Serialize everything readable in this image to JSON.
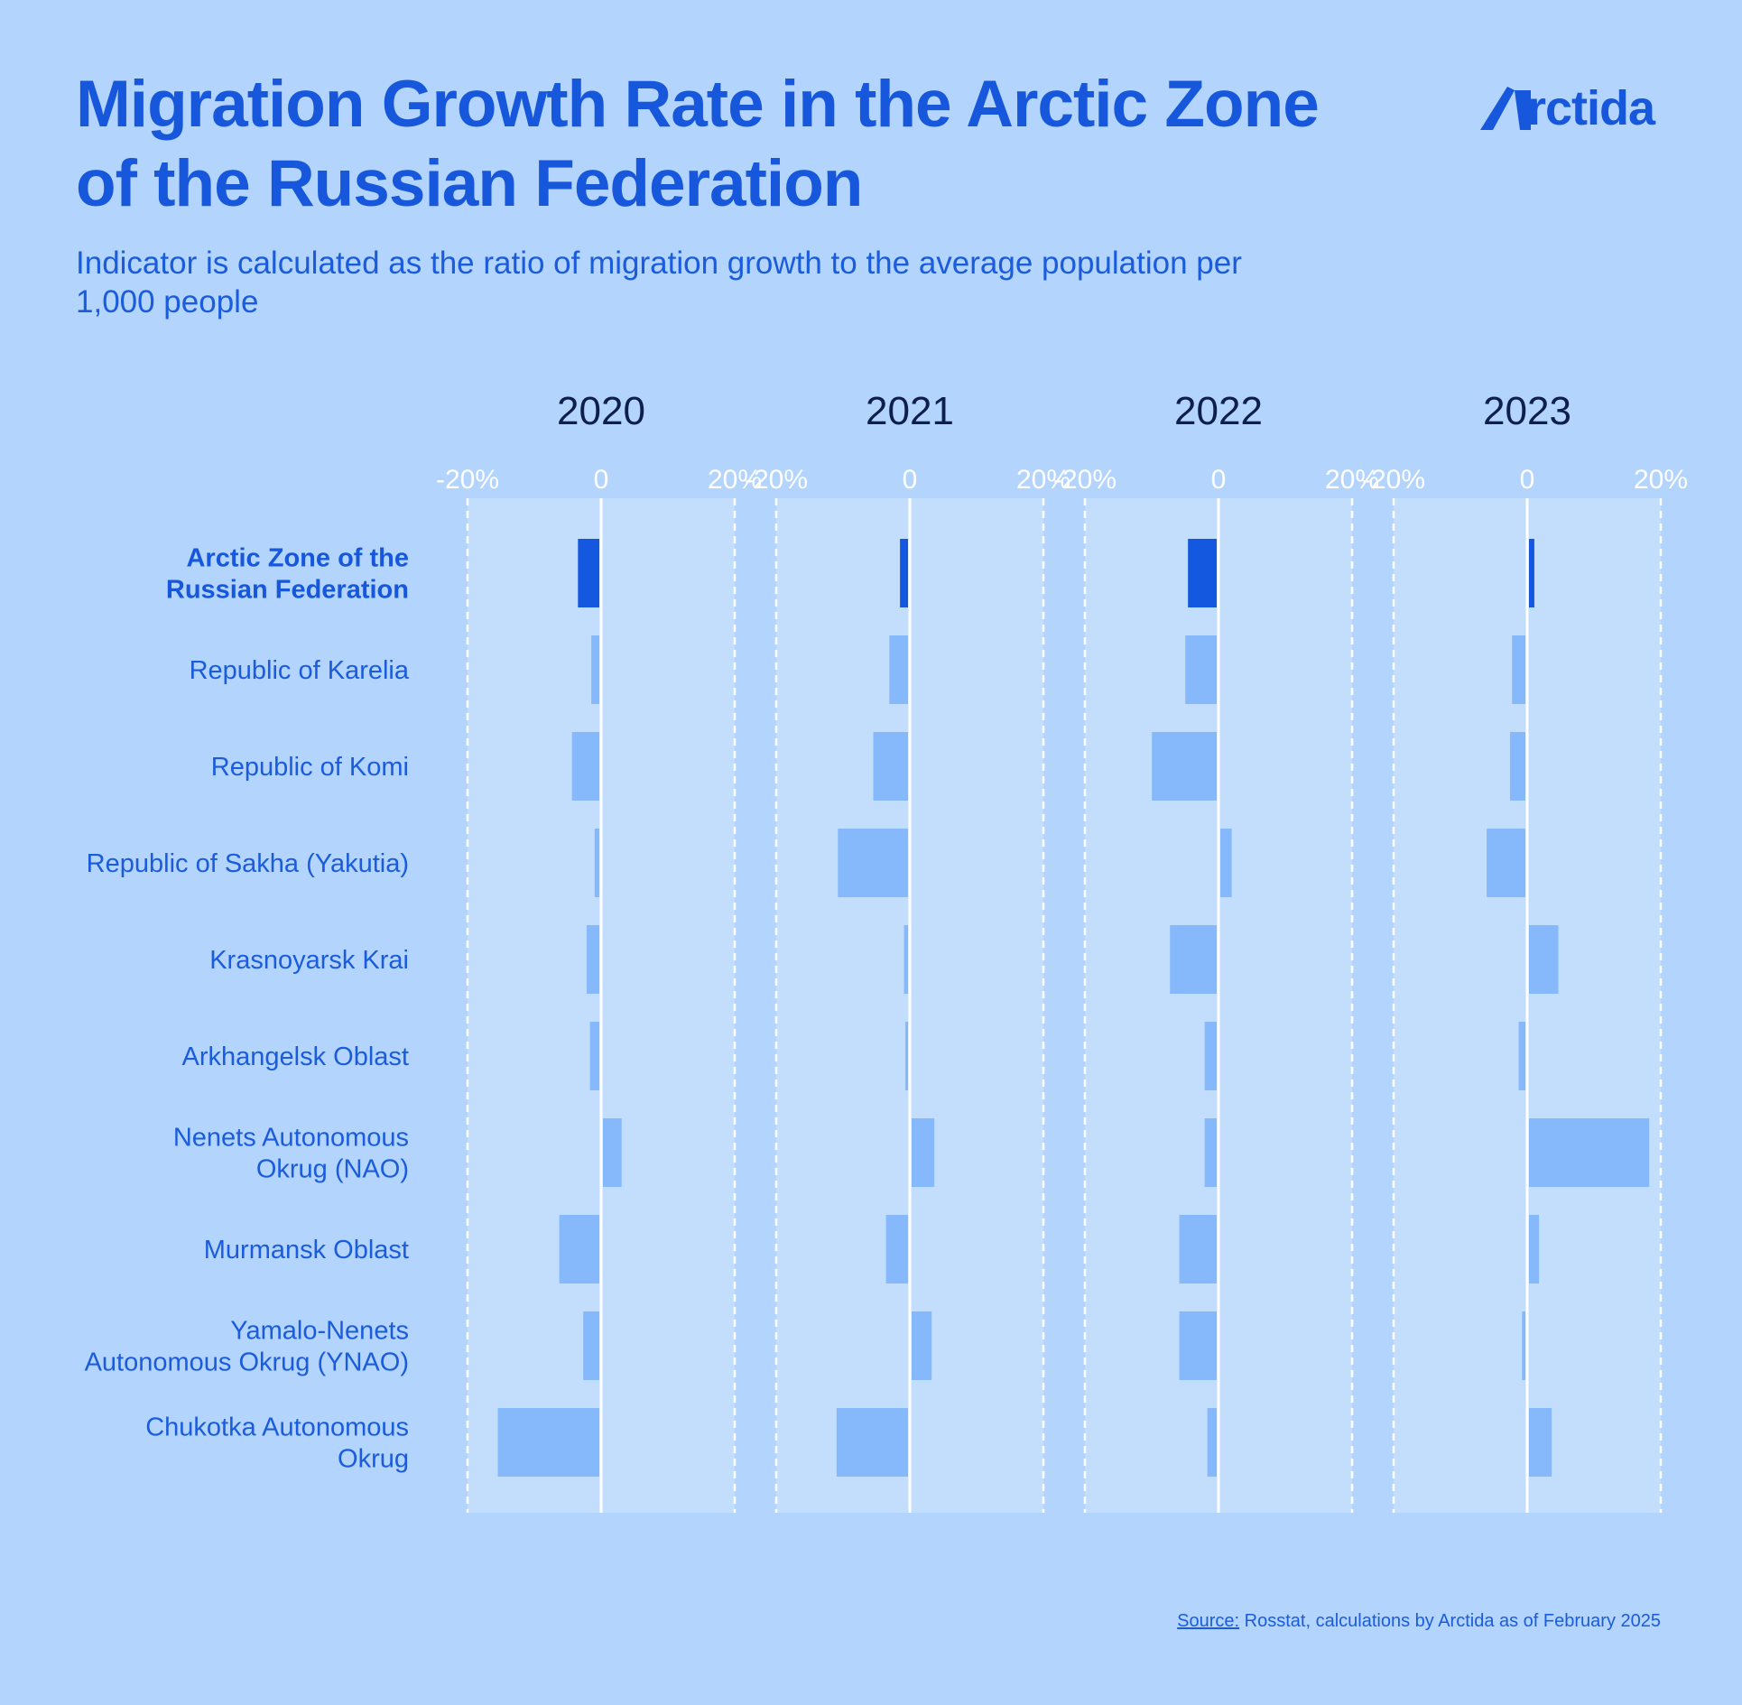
{
  "header": {
    "title": "Migration Growth Rate in the Arctic Zone of the Russian Federation",
    "subtitle": "Indicator is calculated as the ratio of migration growth to the average population per 1,000 people",
    "logo_text": "rctida"
  },
  "colors": {
    "background": "#b3d4fc",
    "panel": "#c3defd",
    "highlight_bar": "#1558e0",
    "bar": "#85b9fb",
    "text_accent": "#1657dc"
  },
  "chart_data": {
    "type": "bar",
    "orientation": "horizontal",
    "categories": [
      "Arctic Zone of the Russian Federation",
      "Republic of Karelia",
      "Republic of Komi",
      "Republic of Sakha (Yakutia)",
      "Krasnoyarsk Krai",
      "Arkhangelsk Oblast",
      "Nenets Autonomous Okrug (NAO)",
      "Murmansk Oblast",
      "Yamalo-Nenets Autonomous Okrug (YNAO)",
      "Chukotka Autonomous Okrug"
    ],
    "category_lines": [
      [
        "Arctic Zone of the",
        "Russian Federation"
      ],
      [
        "Republic of Karelia"
      ],
      [
        "Republic of Komi"
      ],
      [
        "Republic of Sakha (Yakutia)"
      ],
      [
        "Krasnoyarsk Krai"
      ],
      [
        "Arkhangelsk Oblast"
      ],
      [
        "Nenets Autonomous",
        "Okrug (NAO)"
      ],
      [
        "Murmansk Oblast"
      ],
      [
        "Yamalo-Nenets",
        "Autonomous Okrug (YNAO)"
      ],
      [
        "Chukotka Autonomous",
        "Okrug"
      ]
    ],
    "highlight_category": 0,
    "series": [
      {
        "name": "2020",
        "values": [
          -3.2,
          -1.2,
          -4.1,
          -0.7,
          -1.9,
          -1.4,
          2.8,
          -6.0,
          -2.4,
          -15.2
        ]
      },
      {
        "name": "2021",
        "values": [
          -1.2,
          -2.8,
          -5.2,
          -10.5,
          -0.6,
          -0.3,
          3.4,
          -3.3,
          3.0,
          -10.7
        ]
      },
      {
        "name": "2022",
        "values": [
          -4.3,
          -4.7,
          -9.7,
          1.7,
          -7.0,
          -1.8,
          -1.8,
          -5.6,
          -5.6,
          -1.4
        ]
      },
      {
        "name": "2023",
        "values": [
          0.8,
          -2.0,
          -2.3,
          -5.8,
          4.4,
          -1.0,
          18.0,
          1.5,
          -0.5,
          3.4
        ]
      }
    ],
    "xlim": [
      -20,
      20
    ],
    "xticks": [
      -20,
      0,
      20
    ],
    "xtick_labels": [
      "-20%",
      "0",
      "20%"
    ],
    "xlabel": "",
    "ylabel": ""
  },
  "footer": {
    "source_key": "Source:",
    "source_text": " Rosstat, calculations by Arctida as of February 2025"
  }
}
